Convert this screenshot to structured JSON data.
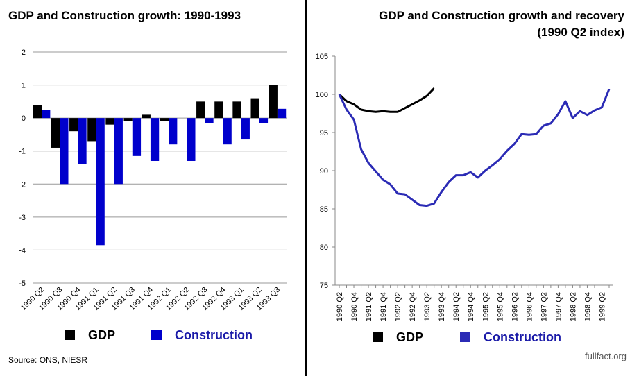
{
  "chart_data": [
    {
      "type": "bar",
      "title": "GDP and Construction growth: 1990-1993",
      "categories": [
        "1990 Q2",
        "1990 Q3",
        "1990 Q4",
        "1991 Q1",
        "1991 Q2",
        "1991 Q3",
        "1991 Q4",
        "1992 Q1",
        "1992 Q2",
        "1992 Q3",
        "1992 Q4",
        "1993 Q1",
        "1993 Q2",
        "1993 Q3"
      ],
      "series": [
        {
          "name": "GDP",
          "color": "#000000",
          "values": [
            0.4,
            -0.9,
            -0.4,
            -0.7,
            -0.2,
            -0.1,
            0.1,
            -0.1,
            0,
            0.5,
            0.5,
            0.5,
            0.6,
            1.0
          ]
        },
        {
          "name": "Construction",
          "color": "#0000cc",
          "values": [
            0.25,
            -2.0,
            -1.4,
            -3.85,
            -2.0,
            -1.15,
            -1.3,
            -0.8,
            -1.3,
            -0.15,
            -0.8,
            -0.65,
            -0.15,
            0.28
          ]
        }
      ],
      "ylim": [
        -5,
        2
      ],
      "yticks": [
        -5,
        -4,
        -3,
        -2,
        -1,
        0,
        1,
        2
      ],
      "grid": true
    },
    {
      "type": "line",
      "title": "GDP and Construction growth and recovery",
      "subtitle": "(1990 Q2 index)",
      "categories": [
        "1990 Q2",
        null,
        "1990 Q4",
        null,
        "1991 Q2",
        null,
        "1991 Q4",
        null,
        "1992 Q2",
        null,
        "1992 Q4",
        null,
        "1993 Q2",
        null,
        "1993 Q4",
        null,
        "1994 Q2",
        null,
        "1994 Q4",
        null,
        "1995 Q2",
        null,
        "1995 Q4",
        null,
        "1996 Q2",
        null,
        "1996 Q4",
        null,
        "1997 Q2",
        null,
        "1997 Q4",
        null,
        "1998 Q2",
        null,
        "1998 Q4",
        null,
        "1999 Q2",
        null
      ],
      "series": [
        {
          "name": "GDP",
          "color": "#000000",
          "values": [
            100,
            99.1,
            98.7,
            98.0,
            97.8,
            97.7,
            97.8,
            97.7,
            97.7,
            98.2,
            98.7,
            99.2,
            99.8,
            100.8,
            null,
            null,
            null,
            null,
            null,
            null,
            null,
            null,
            null,
            null,
            null,
            null,
            null,
            null,
            null,
            null,
            null,
            null,
            null,
            null,
            null,
            null,
            null,
            null
          ]
        },
        {
          "name": "Construction",
          "color": "#2b2bb5",
          "values": [
            100,
            98,
            96.7,
            92.8,
            91,
            89.9,
            88.8,
            88.2,
            87,
            86.9,
            86.2,
            85.5,
            85.4,
            85.7,
            87.2,
            88.5,
            89.4,
            89.4,
            89.8,
            89.1,
            90,
            90.7,
            91.5,
            92.6,
            93.5,
            94.8,
            94.7,
            94.8,
            95.9,
            96.2,
            97.4,
            99.1,
            96.9,
            97.8,
            97.3,
            97.9,
            98.3,
            100.7
          ]
        }
      ],
      "ylim": [
        75,
        105
      ],
      "yticks": [
        75,
        80,
        85,
        90,
        95,
        100,
        105
      ],
      "grid": false
    }
  ],
  "source": "Source: ONS, NIESR",
  "logo": "fullfact.org"
}
